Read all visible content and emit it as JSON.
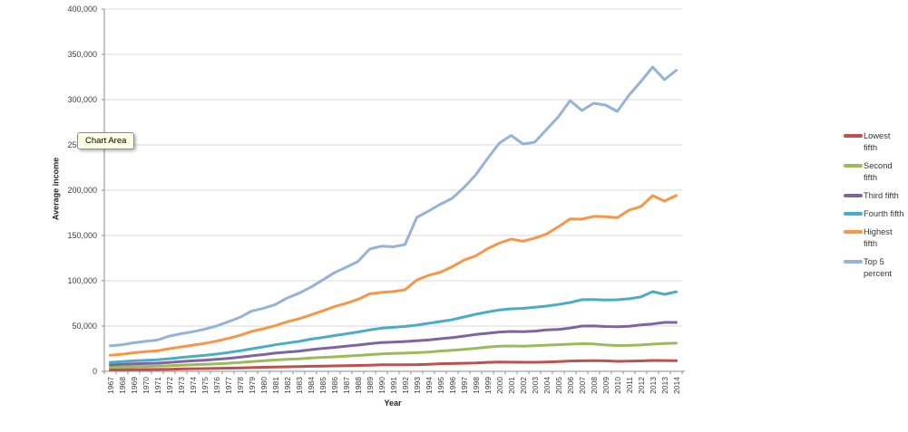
{
  "tooltip": {
    "label": "Chart Area"
  },
  "colors": {
    "background": "#ffffff",
    "gridline": "#d9d9d9",
    "axis": "#8c8c8c",
    "tick_label": "#404040",
    "tooltip_bg": "#ffffe1"
  },
  "chart_data": {
    "type": "line",
    "title": "",
    "xlabel": "Year",
    "ylabel": "Average income",
    "ylim": [
      0,
      400000
    ],
    "ytick_step": 50000,
    "grid": true,
    "legend_position": "right",
    "categories": [
      "1967",
      "1968",
      "1969",
      "1970",
      "1971",
      "1972",
      "1973",
      "1974",
      "1975",
      "1976",
      "1977",
      "1978",
      "1979",
      "1980",
      "1981",
      "1982",
      "1983",
      "1984",
      "1985",
      "1986",
      "1987",
      "1988",
      "1989",
      "1990",
      "1991",
      "1992",
      "1993",
      "1994",
      "1995",
      "1996",
      "1997",
      "1998",
      "1999",
      "2000",
      "2001",
      "2002",
      "2003",
      "2004",
      "2005",
      "2006",
      "2007",
      "2008",
      "2009",
      "2010",
      "2011",
      "2012",
      "2013",
      "2013",
      "2014"
    ],
    "series": [
      {
        "name": "Lowest fifth",
        "color": "#C0504D",
        "values": [
          1626,
          1812,
          1956,
          2029,
          2119,
          2316,
          2577,
          2859,
          3034,
          3278,
          3506,
          3807,
          4138,
          4483,
          4836,
          5047,
          5276,
          5606,
          5797,
          6014,
          6167,
          6504,
          6783,
          7195,
          7263,
          7288,
          7412,
          7762,
          8350,
          8596,
          8872,
          9223,
          9940,
          10190,
          10136,
          9990,
          9996,
          10264,
          10655,
          11352,
          11551,
          11656,
          11552,
          11034,
          11239,
          11490,
          12000,
          11900,
          11676
        ]
      },
      {
        "name": "Second fifth",
        "color": "#9BBB59",
        "values": [
          4461,
          4839,
          5198,
          5428,
          5661,
          6129,
          6687,
          7287,
          7713,
          8291,
          8888,
          9760,
          10708,
          11575,
          12486,
          13174,
          13765,
          14696,
          15369,
          16042,
          16652,
          17521,
          18433,
          19348,
          19759,
          20118,
          20575,
          21300,
          22400,
          23200,
          24200,
          25400,
          26700,
          27700,
          28000,
          27800,
          28300,
          28900,
          29400,
          30000,
          30500,
          30300,
          29100,
          28500,
          28600,
          29100,
          30000,
          30800,
          31087
        ]
      },
      {
        "name": "Third fifth",
        "color": "#8064A2",
        "values": [
          7078,
          7653,
          8217,
          8614,
          9036,
          9803,
          10699,
          11552,
          12282,
          13207,
          14281,
          15636,
          17118,
          18486,
          20080,
          21245,
          22339,
          23911,
          25166,
          26441,
          27662,
          29044,
          30488,
          31780,
          32274,
          32859,
          33682,
          34600,
          36000,
          37200,
          38900,
          40700,
          42000,
          43400,
          44000,
          43800,
          44400,
          45800,
          46300,
          47800,
          49968,
          50132,
          49534,
          49309,
          49842,
          51179,
          52322,
          54000,
          54041
        ]
      },
      {
        "name": "Fourth fifth",
        "color": "#4BACC6",
        "values": [
          9903,
          10700,
          11555,
          12120,
          12751,
          13937,
          15185,
          16477,
          17633,
          19033,
          20655,
          22674,
          24918,
          26983,
          29309,
          31247,
          33033,
          35468,
          37398,
          39394,
          41351,
          43442,
          45728,
          47569,
          48618,
          49561,
          51000,
          53000,
          55000,
          57000,
          60000,
          63000,
          65500,
          67800,
          69000,
          69500,
          70700,
          72000,
          73800,
          76000,
          79100,
          79200,
          78700,
          79000,
          80100,
          82100,
          88000,
          85000,
          87834
        ]
      },
      {
        "name": "Highest fifth",
        "color": "#F79646",
        "values": [
          17791,
          18812,
          20520,
          21684,
          22583,
          25028,
          26885,
          28880,
          30846,
          33266,
          36260,
          39720,
          44066,
          46994,
          50438,
          54655,
          57968,
          62208,
          66710,
          71407,
          75091,
          79378,
          85529,
          87137,
          88130,
          89964,
          100917,
          105945,
          109411,
          115514,
          122764,
          127529,
          135401,
          141620,
          145970,
          143743,
          147078,
          151593,
          159583,
          168170,
          167971,
          171057,
          170844,
          169633,
          178020,
          181905,
          194000,
          188000,
          194053
        ]
      },
      {
        "name": "Top 5 percent",
        "color": "#95B3D7",
        "values": [
          28110,
          29410,
          31500,
          33132,
          34493,
          38836,
          41467,
          43724,
          46459,
          50000,
          54664,
          59614,
          66617,
          69623,
          73722,
          80880,
          86202,
          92752,
          100656,
          108846,
          114861,
          121229,
          135000,
          138186,
          137532,
          140026,
          170000,
          177000,
          184500,
          191000,
          203000,
          217000,
          235000,
          252000,
          260500,
          251000,
          253000,
          267000,
          281000,
          298900,
          288000,
          296000,
          294000,
          287000,
          305000,
          320000,
          336000,
          322000,
          332347
        ]
      }
    ]
  }
}
